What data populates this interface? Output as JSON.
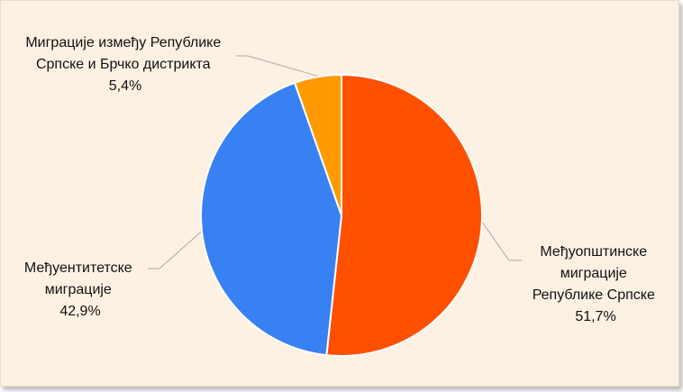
{
  "chart_data": {
    "type": "pie",
    "slices": [
      {
        "name": "Међуопштинске миграције Републике Српске",
        "label_lines": [
          "Међуопштинске",
          "миграције",
          "Републике Српске"
        ],
        "value": 51.7,
        "value_label": "51,7%",
        "color": "#ff5000"
      },
      {
        "name": "Међуентитетске миграције",
        "label_lines": [
          "Међуентитетске",
          "миграције"
        ],
        "value": 42.9,
        "value_label": "42,9%",
        "color": "#3781f2"
      },
      {
        "name": "Миграције између Републике Српске и Брчко дистрикта",
        "label_lines": [
          "Миграције између Републике",
          "Српске и Брчко дистрикта"
        ],
        "value": 5.4,
        "value_label": "5,4%",
        "color": "#ff9a00"
      }
    ],
    "start_angle_deg": 0,
    "direction": "clockwise",
    "legend": "none",
    "data_labels": "outside with leader lines"
  }
}
